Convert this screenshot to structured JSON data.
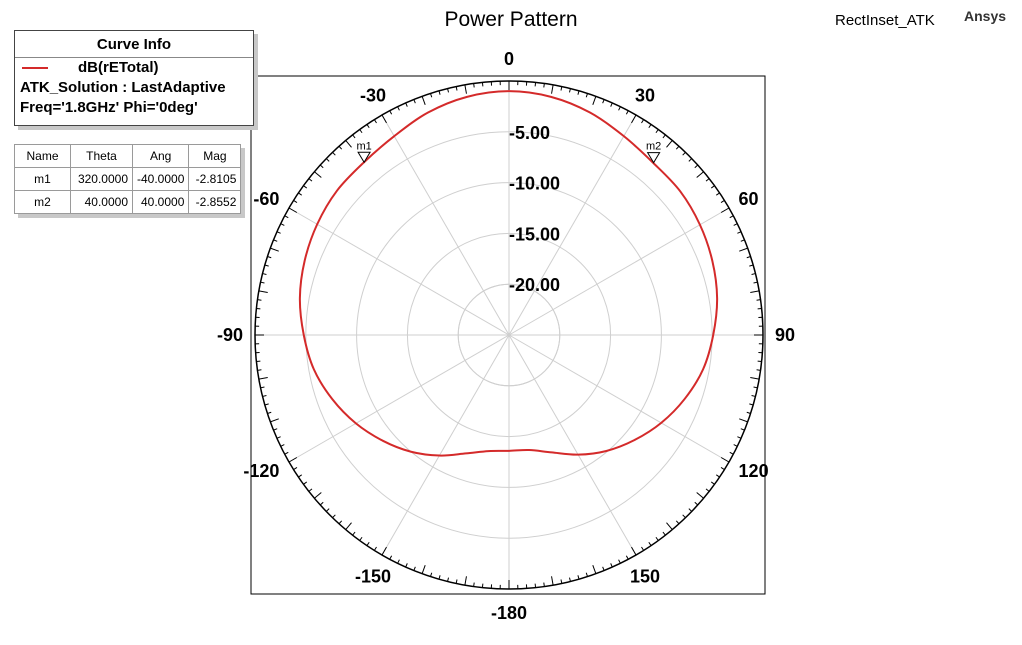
{
  "header": {
    "title": "Power Pattern",
    "design_name": "RectInset_ATK",
    "brand": "Ansys"
  },
  "curve_info": {
    "header": "Curve Info",
    "trace_name": "dB(rETotal)",
    "solution": "ATK_Solution : LastAdaptive",
    "variables": "Freq='1.8GHz' Phi='0deg'",
    "trace_color": "#d42a2a"
  },
  "marker_table": {
    "columns": [
      "Name",
      "Theta",
      "Ang",
      "Mag"
    ],
    "rows": [
      [
        "m1",
        "320.0000",
        "-40.0000",
        "-2.8105"
      ],
      [
        "m2",
        "40.0000",
        "40.0000",
        "-2.8552"
      ]
    ]
  },
  "chart_data": {
    "type": "line",
    "coordinate_system": "polar",
    "angular_unit": "deg",
    "angle_zero": "top",
    "angle_direction": "clockwise",
    "angular_ticks": [
      {
        "angle": 0,
        "label": "0"
      },
      {
        "angle": 30,
        "label": "30"
      },
      {
        "angle": 60,
        "label": "60"
      },
      {
        "angle": 90,
        "label": "90"
      },
      {
        "angle": 120,
        "label": "120"
      },
      {
        "angle": 150,
        "label": "150"
      },
      {
        "angle": 180,
        "label": "-180"
      },
      {
        "angle": -150,
        "label": "-150"
      },
      {
        "angle": -120,
        "label": "-120"
      },
      {
        "angle": -90,
        "label": "-90"
      },
      {
        "angle": -60,
        "label": "-60"
      },
      {
        "angle": -30,
        "label": "-30"
      }
    ],
    "radial_range": [
      -25,
      0
    ],
    "radial_ticks": [
      {
        "value": -5,
        "label": "-5.00"
      },
      {
        "value": -10,
        "label": "-10.00"
      },
      {
        "value": -15,
        "label": "-15.00"
      },
      {
        "value": -20,
        "label": "-20.00"
      }
    ],
    "grid": true,
    "series": [
      {
        "name": "dB(rETotal)",
        "color": "#d42a2a",
        "angles": [
          -180,
          -170,
          -160,
          -150,
          -140,
          -130,
          -120,
          -110,
          -100,
          -90,
          -80,
          -70,
          -60,
          -50,
          -40,
          -30,
          -20,
          -10,
          0,
          10,
          20,
          30,
          40,
          50,
          60,
          70,
          80,
          90,
          100,
          110,
          120,
          130,
          140,
          150,
          160,
          170,
          180
        ],
        "values": [
          -13.6,
          -13.4,
          -12.6,
          -11.3,
          -10.0,
          -8.8,
          -7.6,
          -6.5,
          -5.5,
          -4.8,
          -4.1,
          -3.6,
          -3.2,
          -2.9,
          -2.8,
          -2.4,
          -1.7,
          -1.2,
          -1.0,
          -1.2,
          -1.7,
          -2.4,
          -2.9,
          -3.0,
          -3.3,
          -3.7,
          -4.2,
          -4.9,
          -5.6,
          -6.6,
          -7.7,
          -8.9,
          -10.1,
          -11.4,
          -12.7,
          -13.5,
          -13.6
        ]
      }
    ],
    "markers": [
      {
        "name": "m1",
        "angle": -40,
        "value": -2.8105
      },
      {
        "name": "m2",
        "angle": 40,
        "value": -2.8552
      }
    ]
  }
}
